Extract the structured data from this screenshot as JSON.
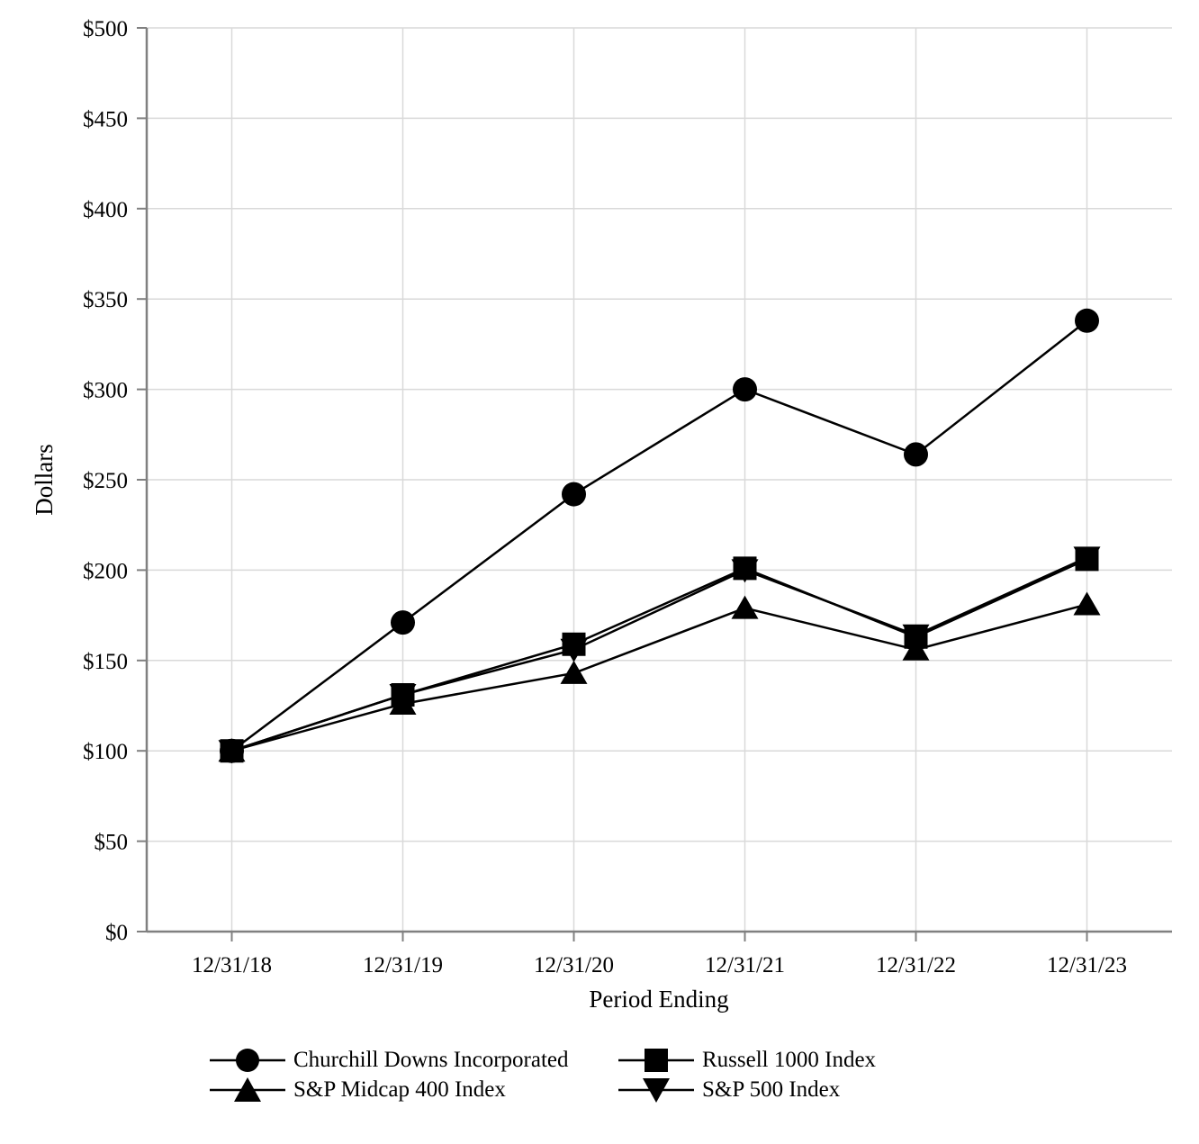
{
  "chart_data": {
    "type": "line",
    "title": "",
    "xlabel": "Period Ending",
    "ylabel": "Dollars",
    "x_categories": [
      "12/31/18",
      "12/31/19",
      "12/31/20",
      "12/31/21",
      "12/31/22",
      "12/31/23"
    ],
    "y_tick_labels": [
      "$0",
      "$50",
      "$100",
      "$150",
      "$200",
      "$250",
      "$300",
      "$350",
      "$400",
      "$450",
      "$500"
    ],
    "y_tick_values": [
      0,
      50,
      100,
      150,
      200,
      250,
      300,
      350,
      400,
      450,
      500
    ],
    "ylim": [
      0,
      500
    ],
    "grid": true,
    "legend_position": "bottom",
    "series": [
      {
        "name": "Churchill Downs Incorporated",
        "marker": "circle",
        "values": [
          100,
          171,
          242,
          300,
          264,
          338
        ]
      },
      {
        "name": "Russell 1000 Index",
        "marker": "square",
        "values": [
          100,
          131,
          159,
          201,
          163,
          206
        ]
      },
      {
        "name": "S&P Midcap 400 Index",
        "marker": "triangle-up",
        "values": [
          100,
          126,
          143,
          179,
          156,
          181
        ]
      },
      {
        "name": "S&P 500 Index",
        "marker": "triangle-down",
        "values": [
          100,
          131,
          156,
          200,
          164,
          207
        ]
      }
    ],
    "colors": {
      "series": "#000000",
      "gridline": "#d9d9d9",
      "axis": "#808080",
      "text": "#000000"
    }
  }
}
